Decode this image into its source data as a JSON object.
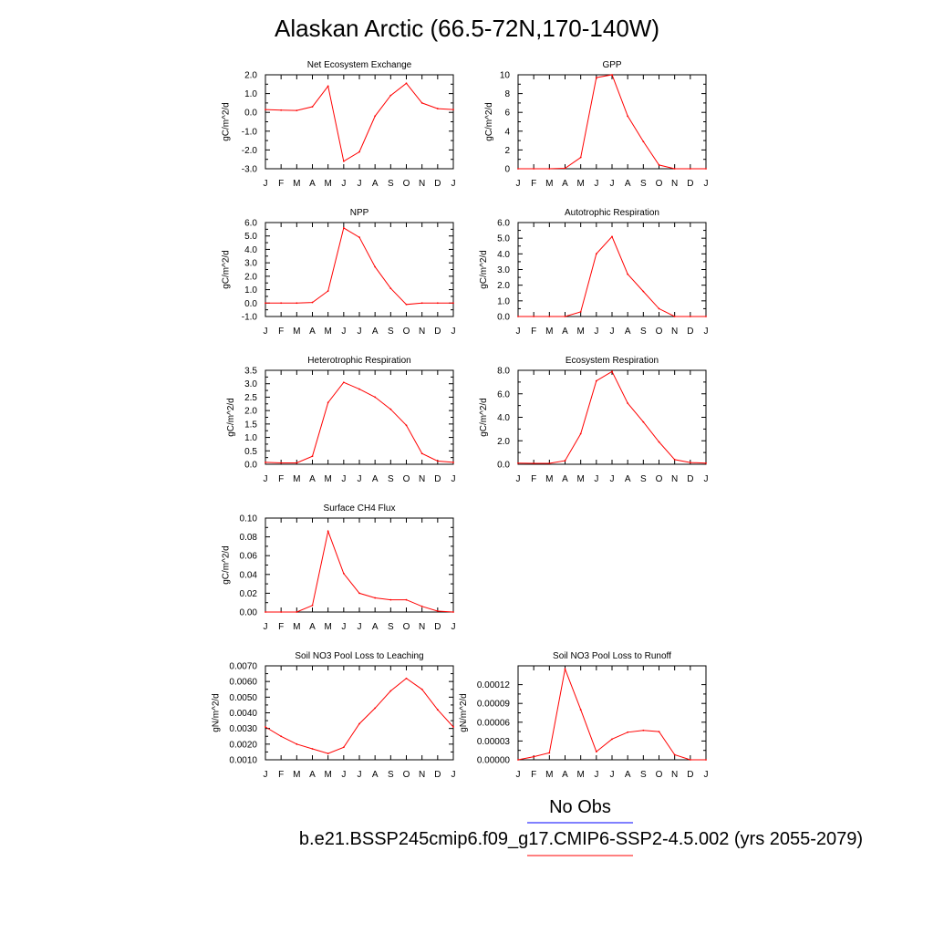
{
  "title": "Alaskan Arctic (66.5-72N,170-140W)",
  "legend": {
    "obs_label": "No Obs",
    "obs_color": "#0000ff",
    "model_label": "b.e21.BSSP245cmip6.f09_g17.CMIP6-SSP2-4.5.002 (yrs 2055-2079)",
    "model_color": "#ff0000"
  },
  "chart_data": [
    {
      "type": "line",
      "title": "Net Ecosystem Exchange",
      "ylabel": "gC/m^2/d",
      "categories": [
        "J",
        "F",
        "M",
        "A",
        "M",
        "J",
        "J",
        "A",
        "S",
        "O",
        "N",
        "D",
        "J"
      ],
      "ylim": [
        -3.0,
        2.0
      ],
      "yticks": [
        "-3.0",
        "-2.0",
        "-1.0",
        "0.0",
        "1.0",
        "2.0"
      ],
      "series": [
        {
          "values": [
            0.15,
            0.12,
            0.1,
            0.3,
            1.4,
            -2.6,
            -2.1,
            -0.2,
            0.9,
            1.55,
            0.5,
            0.2,
            0.15
          ]
        }
      ]
    },
    {
      "type": "line",
      "title": "GPP",
      "ylabel": "gC/m^2/d",
      "categories": [
        "J",
        "F",
        "M",
        "A",
        "M",
        "J",
        "J",
        "A",
        "S",
        "O",
        "N",
        "D",
        "J"
      ],
      "ylim": [
        0,
        10
      ],
      "yticks": [
        "0",
        "2",
        "4",
        "6",
        "8",
        "10"
      ],
      "series": [
        {
          "values": [
            0.0,
            0.0,
            0.0,
            0.05,
            1.2,
            9.7,
            10.0,
            5.6,
            2.9,
            0.4,
            0.0,
            0.0,
            0.0
          ]
        }
      ]
    },
    {
      "type": "line",
      "title": "NPP",
      "ylabel": "gC/m^2/d",
      "categories": [
        "J",
        "F",
        "M",
        "A",
        "M",
        "J",
        "J",
        "A",
        "S",
        "O",
        "N",
        "D",
        "J"
      ],
      "ylim": [
        -1.0,
        6.0
      ],
      "yticks": [
        "-1.0",
        "0.0",
        "1.0",
        "2.0",
        "3.0",
        "4.0",
        "5.0",
        "6.0"
      ],
      "series": [
        {
          "values": [
            0.0,
            0.0,
            0.0,
            0.05,
            0.9,
            5.6,
            4.9,
            2.7,
            1.1,
            -0.1,
            0.0,
            0.0,
            0.0
          ]
        }
      ]
    },
    {
      "type": "line",
      "title": "Autotrophic Respiration",
      "ylabel": "gC/m^2/d",
      "categories": [
        "J",
        "F",
        "M",
        "A",
        "M",
        "J",
        "J",
        "A",
        "S",
        "O",
        "N",
        "D",
        "J"
      ],
      "ylim": [
        0.0,
        6.0
      ],
      "yticks": [
        "0.0",
        "1.0",
        "2.0",
        "3.0",
        "4.0",
        "5.0",
        "6.0"
      ],
      "series": [
        {
          "values": [
            0.0,
            0.0,
            0.0,
            0.0,
            0.3,
            4.0,
            5.1,
            2.7,
            1.6,
            0.5,
            0.0,
            0.0,
            0.0
          ]
        }
      ]
    },
    {
      "type": "line",
      "title": "Heterotrophic Respiration",
      "ylabel": "gC/m^2/d",
      "categories": [
        "J",
        "F",
        "M",
        "A",
        "M",
        "J",
        "J",
        "A",
        "S",
        "O",
        "N",
        "D",
        "J"
      ],
      "ylim": [
        0.0,
        3.5
      ],
      "yticks": [
        "0.0",
        "0.5",
        "1.0",
        "1.5",
        "2.0",
        "2.5",
        "3.0",
        "3.5"
      ],
      "series": [
        {
          "values": [
            0.07,
            0.05,
            0.05,
            0.3,
            2.3,
            3.05,
            2.8,
            2.5,
            2.05,
            1.45,
            0.4,
            0.12,
            0.07
          ]
        }
      ]
    },
    {
      "type": "line",
      "title": "Ecosystem Respiration",
      "ylabel": "gC/m^2/d",
      "categories": [
        "J",
        "F",
        "M",
        "A",
        "M",
        "J",
        "J",
        "A",
        "S",
        "O",
        "N",
        "D",
        "J"
      ],
      "ylim": [
        0.0,
        8.0
      ],
      "yticks": [
        "0.0",
        "2.0",
        "4.0",
        "6.0",
        "8.0"
      ],
      "series": [
        {
          "values": [
            0.1,
            0.08,
            0.08,
            0.3,
            2.6,
            7.1,
            7.9,
            5.2,
            3.6,
            1.9,
            0.4,
            0.15,
            0.1
          ]
        }
      ]
    },
    {
      "type": "line",
      "title": "Surface CH4 Flux",
      "ylabel": "gC/m^2/d",
      "categories": [
        "J",
        "F",
        "M",
        "A",
        "M",
        "J",
        "J",
        "A",
        "S",
        "O",
        "N",
        "D",
        "J"
      ],
      "ylim": [
        0.0,
        0.1
      ],
      "yticks": [
        "0.00",
        "0.02",
        "0.04",
        "0.06",
        "0.08",
        "0.10"
      ],
      "series": [
        {
          "values": [
            0.0,
            0.0,
            0.0,
            0.007,
            0.086,
            0.041,
            0.02,
            0.015,
            0.013,
            0.013,
            0.006,
            0.001,
            0.0
          ]
        }
      ]
    },
    {
      "type": "line",
      "title": "Soil NO3 Pool Loss to Leaching",
      "ylabel": "gN/m^2/d",
      "categories": [
        "J",
        "F",
        "M",
        "A",
        "M",
        "J",
        "J",
        "A",
        "S",
        "O",
        "N",
        "D",
        "J"
      ],
      "ylim": [
        0.001,
        0.007
      ],
      "yticks": [
        "0.0010",
        "0.0020",
        "0.0030",
        "0.0040",
        "0.0050",
        "0.0060",
        "0.0070"
      ],
      "series": [
        {
          "values": [
            0.0031,
            0.0025,
            0.002,
            0.0017,
            0.0014,
            0.0018,
            0.0033,
            0.0043,
            0.0054,
            0.0062,
            0.0055,
            0.0042,
            0.0031
          ]
        }
      ]
    },
    {
      "type": "line",
      "title": "Soil NO3 Pool Loss to Runoff",
      "ylabel": "gN/m^2/d",
      "categories": [
        "J",
        "F",
        "M",
        "A",
        "M",
        "J",
        "J",
        "A",
        "S",
        "O",
        "N",
        "D",
        "J"
      ],
      "ylim": [
        0.0,
        0.00015
      ],
      "yticks": [
        "0.00000",
        "0.00003",
        "0.00006",
        "0.00009",
        "0.00012"
      ],
      "series": [
        {
          "values": [
            0.0,
            5e-06,
            1.1e-05,
            0.000145,
            8e-05,
            1.3e-05,
            3.3e-05,
            4.4e-05,
            4.7e-05,
            4.5e-05,
            8e-06,
            0.0,
            0.0
          ]
        }
      ]
    }
  ]
}
